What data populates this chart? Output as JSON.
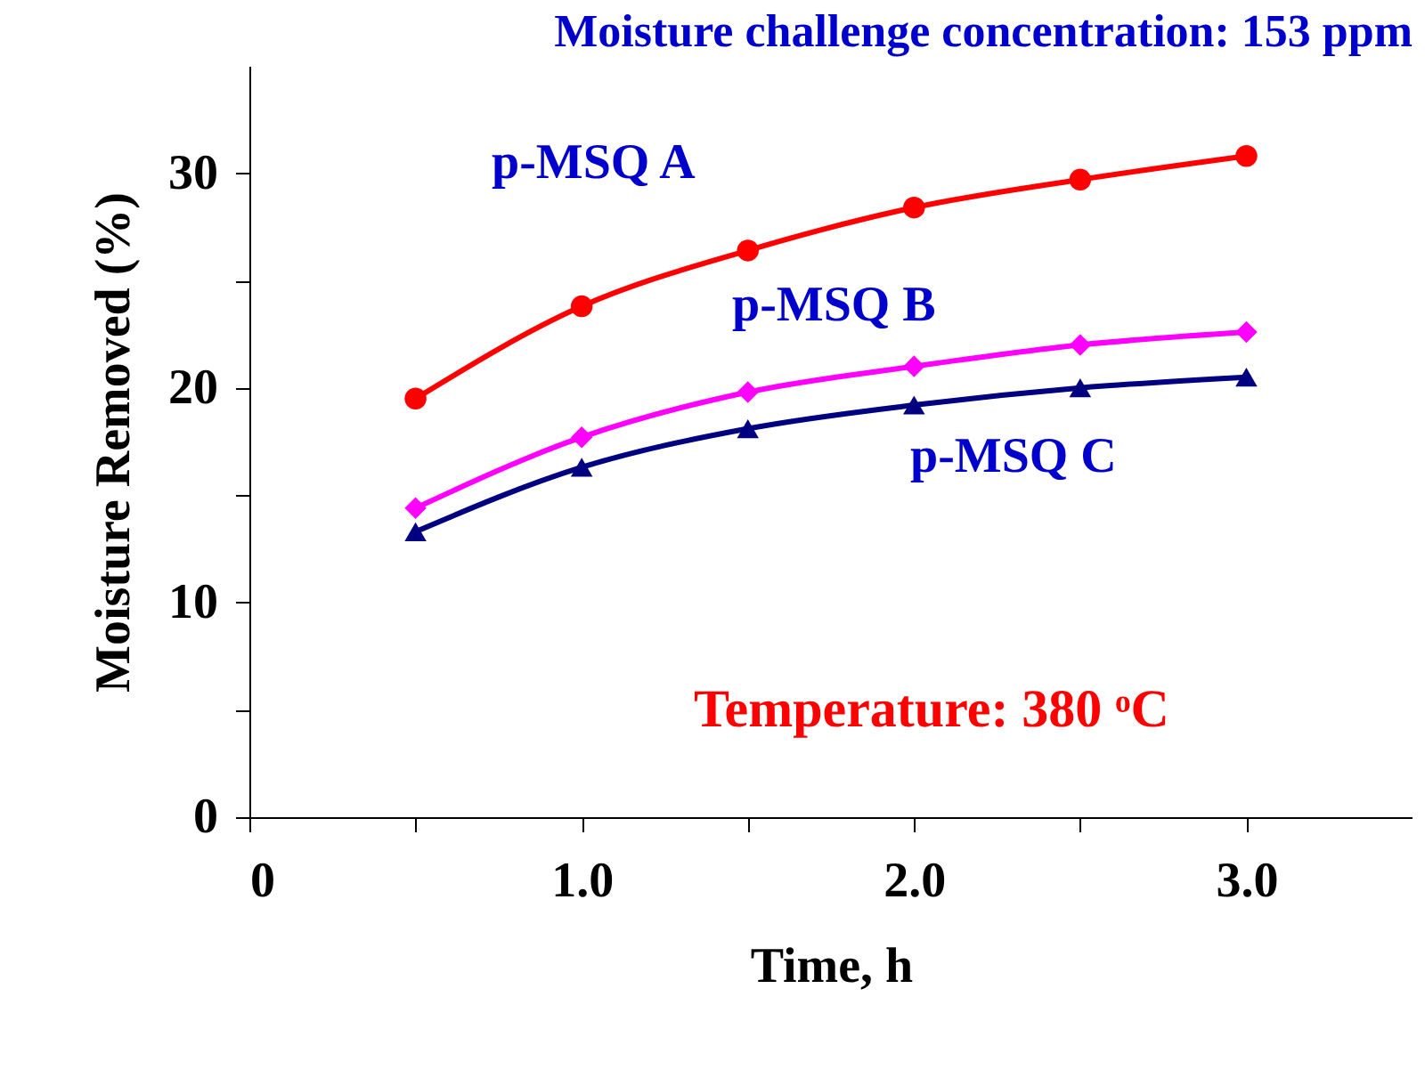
{
  "chart_data": {
    "type": "line",
    "title": "Moisture challenge concentration: 153 ppm",
    "xlabel": "Time, h",
    "ylabel": "Moisture Removed (%)",
    "x": [
      0.5,
      1.0,
      1.5,
      2.0,
      2.5,
      3.0
    ],
    "series": [
      {
        "name": "p-MSQ A",
        "color": "#ff0000",
        "marker": "circle",
        "values": [
          19.5,
          23.8,
          26.4,
          28.4,
          29.7,
          30.8
        ]
      },
      {
        "name": "p-MSQ B",
        "color": "#ff00ff",
        "marker": "diamond",
        "values": [
          14.4,
          17.7,
          19.8,
          21.0,
          22.0,
          22.6
        ]
      },
      {
        "name": "p-MSQ C",
        "color": "#000080",
        "marker": "triangle",
        "values": [
          13.3,
          16.3,
          18.1,
          19.2,
          20.0,
          20.5
        ]
      }
    ],
    "xlim": [
      0,
      3.5
    ],
    "ylim": [
      0,
      35
    ],
    "xticks": [
      0,
      {
        "value": 0.5,
        "label": null
      },
      {
        "value": 1,
        "label": "1.0"
      },
      {
        "value": 1.5,
        "label": null
      },
      {
        "value": 2,
        "label": "2.0"
      },
      {
        "value": 2.5,
        "label": null
      },
      {
        "value": 3,
        "label": "3.0"
      }
    ],
    "yticks": [
      0,
      {
        "value": 5,
        "label": null
      },
      10,
      {
        "value": 15,
        "label": null
      },
      20,
      {
        "value": 25,
        "label": null
      },
      30
    ],
    "annotations": [
      "Temperature: 380 ᵒC"
    ],
    "grid": false,
    "legend": false,
    "line_style": "solid"
  }
}
